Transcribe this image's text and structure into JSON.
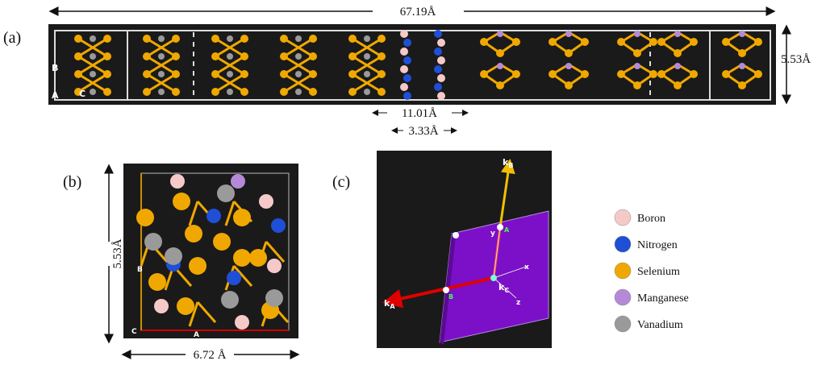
{
  "panel_a": {
    "label": "(a)",
    "total_length": "67.19Å",
    "height": "5.53Å",
    "axis_b": "B",
    "axis_a": "A",
    "axis_c": "C",
    "bn_span": "11.01Å",
    "bn_gap": "3.33Å"
  },
  "panel_b": {
    "label": "(b)",
    "height": "5.53Å",
    "width": "6.72 Å",
    "axis_b": "B",
    "axis_c": "C",
    "axis_a": "A"
  },
  "panel_c": {
    "label": "(c)",
    "kb": {
      "base": "k",
      "sub": "B"
    },
    "ka": {
      "base": "k",
      "sub": "A"
    },
    "kc": {
      "base": "k",
      "sub": "C"
    },
    "y": "y",
    "x": "x",
    "z": "z",
    "a": "A",
    "b": "B"
  },
  "legend": [
    {
      "name": "Boron",
      "color": "#f6c9c9"
    },
    {
      "name": "Nitrogen",
      "color": "#1f4fd6"
    },
    {
      "name": "Selenium",
      "color": "#f0a800"
    },
    {
      "name": "Manganese",
      "color": "#b48ad8"
    },
    {
      "name": "Vanadium",
      "color": "#9a9a9a"
    }
  ]
}
